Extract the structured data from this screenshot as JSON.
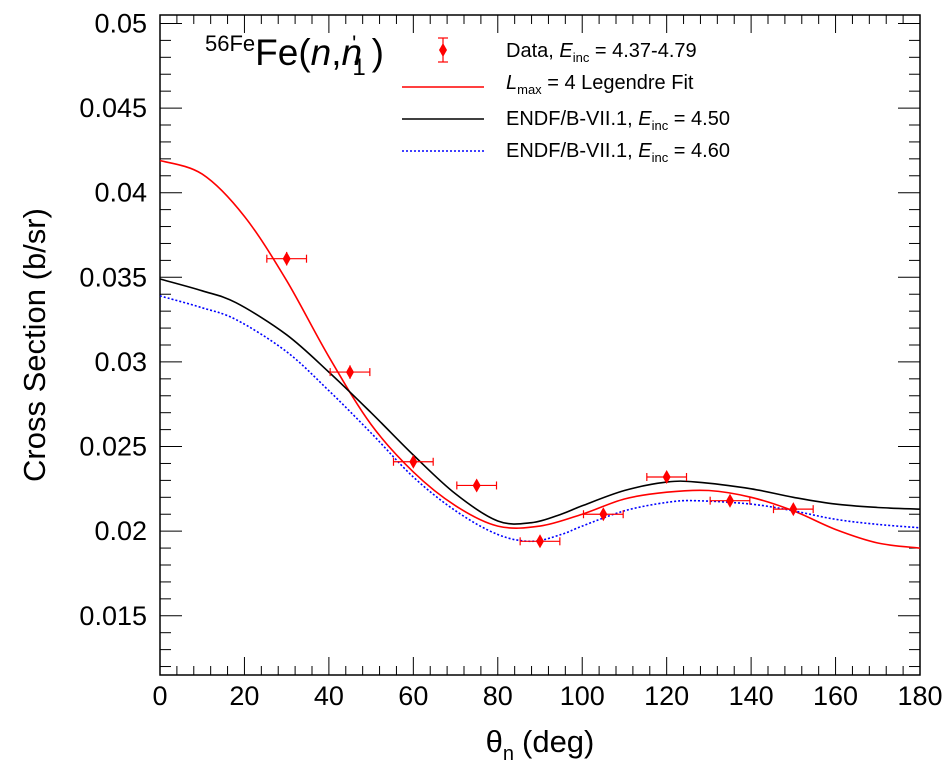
{
  "chart_data": {
    "type": "scatter",
    "title_parts": {
      "mass_number": "56",
      "element_sup": "Fe",
      "reaction_prefix": "Fe(",
      "projectile": "n",
      "comma": ",",
      "ejectile": "n",
      "prime": "'",
      "level": "1",
      "close": ")"
    },
    "xlabel": {
      "symbol": "θ",
      "sub": "n",
      "unit": "(deg)"
    },
    "ylabel": "Cross Section (b/sr)",
    "xlim": [
      0,
      180
    ],
    "ylim": [
      0.0115,
      0.0505
    ],
    "x_ticks": [
      "0",
      "20",
      "40",
      "60",
      "80",
      "100",
      "120",
      "140",
      "160",
      "180"
    ],
    "x_tick_values": [
      0,
      20,
      40,
      60,
      80,
      100,
      120,
      140,
      160,
      180
    ],
    "y_ticks": [
      "0.015",
      "0.02",
      "0.025",
      "0.03",
      "0.035",
      "0.04",
      "0.045",
      "0.05"
    ],
    "y_tick_values": [
      0.015,
      0.02,
      0.025,
      0.03,
      0.035,
      0.04,
      0.045,
      0.05
    ],
    "legend_position": "top-right",
    "legend": [
      {
        "key": "data",
        "pre": "Data, ",
        "var": "E",
        "sub": "inc",
        "post": " = 4.37-4.79",
        "color": "#ff0000",
        "style": "marker"
      },
      {
        "key": "fit",
        "pre": "",
        "var": "L",
        "sub": "max",
        "post": " = 4 Legendre Fit",
        "color": "#ff0000",
        "style": "solid"
      },
      {
        "key": "endf450",
        "pre": "ENDF/B-VII.1, ",
        "var": "E",
        "sub": "inc",
        "post": " = 4.50",
        "color": "#000000",
        "style": "solid"
      },
      {
        "key": "endf460",
        "pre": "ENDF/B-VII.1, ",
        "var": "E",
        "sub": "inc",
        "post": " = 4.60",
        "color": "#0000ff",
        "style": "dotted"
      }
    ],
    "data_points": [
      {
        "x": 30,
        "y": 0.0361,
        "xerr": 4.7,
        "yerr": 0.0004
      },
      {
        "x": 45,
        "y": 0.0294,
        "xerr": 4.7,
        "yerr": 0.0004
      },
      {
        "x": 60,
        "y": 0.0241,
        "xerr": 4.7,
        "yerr": 0.0003
      },
      {
        "x": 75,
        "y": 0.0227,
        "xerr": 4.7,
        "yerr": 0.0002
      },
      {
        "x": 90,
        "y": 0.0194,
        "xerr": 4.7,
        "yerr": 0.0002
      },
      {
        "x": 105,
        "y": 0.021,
        "xerr": 4.7,
        "yerr": 0.0002
      },
      {
        "x": 120,
        "y": 0.0232,
        "xerr": 4.7,
        "yerr": 0.0003
      },
      {
        "x": 135,
        "y": 0.0218,
        "xerr": 4.7,
        "yerr": 0.0002
      },
      {
        "x": 150,
        "y": 0.0213,
        "xerr": 4.7,
        "yerr": 0.0002
      }
    ],
    "series": [
      {
        "key": "fit",
        "color": "#ff0000",
        "style": "solid",
        "x": [
          0,
          10,
          20,
          30,
          40,
          50,
          60,
          70,
          80,
          90,
          100,
          110,
          120,
          130,
          140,
          150,
          160,
          170,
          180
        ],
        "y": [
          0.0419,
          0.0411,
          0.0386,
          0.0348,
          0.0303,
          0.0263,
          0.0235,
          0.0215,
          0.0203,
          0.0203,
          0.021,
          0.0219,
          0.0223,
          0.0224,
          0.022,
          0.0212,
          0.0201,
          0.0193,
          0.019
        ]
      },
      {
        "key": "endf450",
        "color": "#000000",
        "style": "solid",
        "x": [
          0,
          10,
          18,
          30,
          40,
          50,
          60,
          70,
          80,
          88,
          95,
          100,
          110,
          120,
          127,
          140,
          150,
          160,
          170,
          180
        ],
        "y": [
          0.0349,
          0.0342,
          0.0335,
          0.0316,
          0.0294,
          0.027,
          0.0245,
          0.0222,
          0.0206,
          0.0205,
          0.021,
          0.0215,
          0.0224,
          0.0229,
          0.0229,
          0.0225,
          0.022,
          0.0216,
          0.0214,
          0.0213
        ]
      },
      {
        "key": "endf460",
        "color": "#0000ff",
        "style": "dotted",
        "x": [
          0,
          10,
          18,
          30,
          40,
          50,
          60,
          70,
          80,
          88,
          95,
          100,
          110,
          120,
          127,
          140,
          150,
          160,
          170,
          180
        ],
        "y": [
          0.0339,
          0.0332,
          0.0325,
          0.0306,
          0.0283,
          0.0258,
          0.0232,
          0.0212,
          0.0198,
          0.0194,
          0.0198,
          0.0203,
          0.0212,
          0.0217,
          0.0218,
          0.0216,
          0.0212,
          0.0207,
          0.0204,
          0.0202
        ]
      }
    ]
  }
}
